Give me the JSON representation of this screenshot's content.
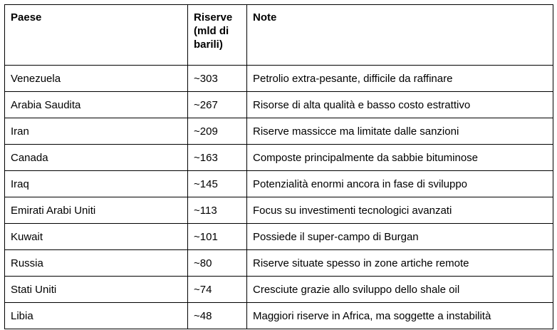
{
  "table": {
    "header": [
      "Paese",
      "Riserve (mld di barili)",
      "Note"
    ],
    "rows": [
      [
        "Venezuela",
        "~303",
        "Petrolio extra-pesante, difficile da raffinare"
      ],
      [
        "Arabia Saudita",
        "~267",
        "Risorse di alta qualità e basso costo estrattivo"
      ],
      [
        "Iran",
        "~209",
        "Riserve massicce ma limitate dalle sanzioni"
      ],
      [
        "Canada",
        "~163",
        "Composte principalmente da sabbie bituminose"
      ],
      [
        "Iraq",
        "~145",
        "Potenzialità enormi ancora in fase di sviluppo"
      ],
      [
        "Emirati Arabi Uniti",
        "~113",
        "Focus su investimenti tecnologici avanzati"
      ],
      [
        "Kuwait",
        "~101",
        "Possiede il super-campo di Burgan"
      ],
      [
        "Russia",
        "~80",
        "Riserve situate spesso in zone artiche remote"
      ],
      [
        "Stati Uniti",
        "~74",
        "Cresciute grazie allo sviluppo dello shale oil"
      ],
      [
        "Libia",
        "~48",
        "Maggiori riserve in Africa, ma soggette a instabilità"
      ]
    ]
  }
}
